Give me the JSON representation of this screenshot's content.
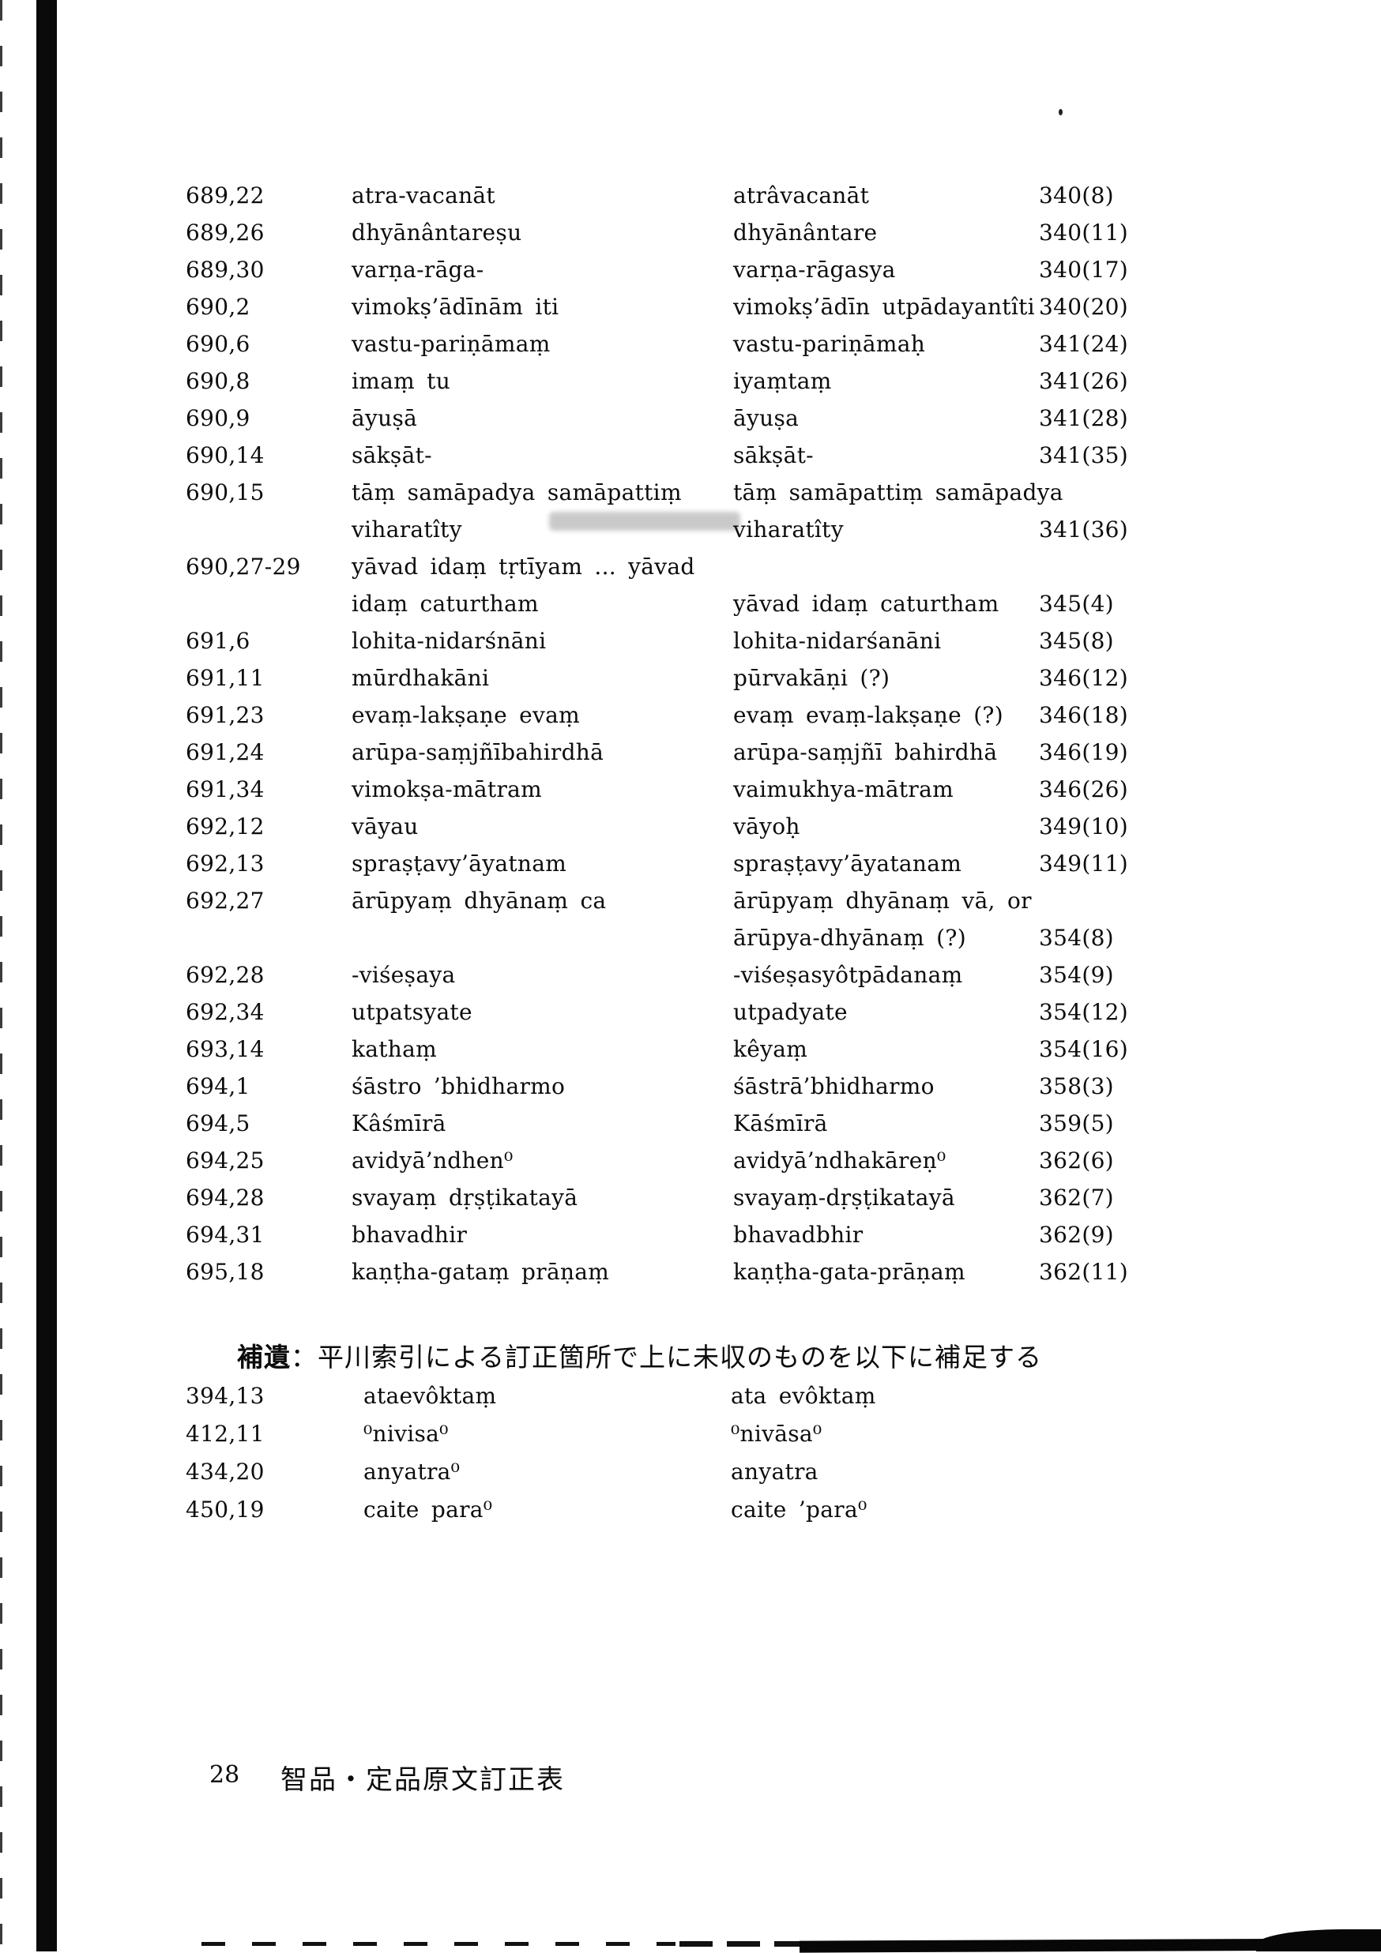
{
  "colors": {
    "ink": "#0c0c0c",
    "paper": "#ffffff"
  },
  "table": {
    "rows": [
      {
        "ref": "689,22",
        "original": [
          "atra-vacanāt"
        ],
        "corrected": [
          "atrâvacanāt"
        ],
        "loc": [
          "340(8)"
        ]
      },
      {
        "ref": "689,26",
        "original": [
          "dhyānântareṣu"
        ],
        "corrected": [
          "dhyānântare"
        ],
        "loc": [
          "340(11)"
        ]
      },
      {
        "ref": "689,30",
        "original": [
          "varṇa-rāga-"
        ],
        "corrected": [
          "varṇa-rāgasya"
        ],
        "loc": [
          "340(17)"
        ]
      },
      {
        "ref": "690,2",
        "original": [
          "vimokṣ’ādīnām iti"
        ],
        "corrected": [
          "vimokṣ’ādīn utpādayantîti"
        ],
        "loc": [
          "340(20)"
        ]
      },
      {
        "ref": "690,6",
        "original": [
          "vastu-pariṇāmaṃ"
        ],
        "corrected": [
          "vastu-pariṇāmaḥ"
        ],
        "loc": [
          "341(24)"
        ]
      },
      {
        "ref": "690,8",
        "original": [
          "imaṃ tu"
        ],
        "corrected": [
          "iyaṃtaṃ"
        ],
        "loc": [
          "341(26)"
        ]
      },
      {
        "ref": "690,9",
        "original": [
          "āyuṣā"
        ],
        "corrected": [
          "āyuṣa"
        ],
        "loc": [
          "341(28)"
        ]
      },
      {
        "ref": "690,14",
        "original": [
          "sākṣāt-"
        ],
        "corrected": [
          "sākṣāt-"
        ],
        "loc": [
          "341(35)"
        ]
      },
      {
        "ref": "690,15",
        "original": [
          "tāṃ samāpadya samāpattiṃ",
          "viharatîty"
        ],
        "corrected": [
          "tāṃ samāpattiṃ samāpadya",
          "viharatîty"
        ],
        "loc": [
          "",
          "341(36)"
        ]
      },
      {
        "ref": "690,27-29",
        "original": [
          "yāvad idaṃ tṛtīyam ... yāvad",
          "idaṃ caturtham"
        ],
        "corrected": [
          "",
          "yāvad idaṃ caturtham"
        ],
        "loc": [
          "",
          "345(4)"
        ]
      },
      {
        "ref": "691,6",
        "original": [
          "lohita-nidarśnāni"
        ],
        "corrected": [
          "lohita-nidarśanāni"
        ],
        "loc": [
          "345(8)"
        ]
      },
      {
        "ref": "691,11",
        "original": [
          "mūrdhakāni"
        ],
        "corrected": [
          "pūrvakāṇi (?)"
        ],
        "loc": [
          "346(12)"
        ]
      },
      {
        "ref": "691,23",
        "original": [
          "evaṃ-lakṣaṇe evaṃ"
        ],
        "corrected": [
          "evaṃ evaṃ-lakṣaṇe (?)"
        ],
        "loc": [
          "346(18)"
        ]
      },
      {
        "ref": "691,24",
        "original": [
          "arūpa-saṃjñībahirdhā"
        ],
        "corrected": [
          "arūpa-saṃjñī bahirdhā"
        ],
        "loc": [
          "346(19)"
        ]
      },
      {
        "ref": "691,34",
        "original": [
          "vimokṣa-mātram"
        ],
        "corrected": [
          "vaimukhya-mātram"
        ],
        "loc": [
          "346(26)"
        ]
      },
      {
        "ref": "692,12",
        "original": [
          "vāyau"
        ],
        "corrected": [
          "vāyoḥ"
        ],
        "loc": [
          "349(10)"
        ]
      },
      {
        "ref": "692,13",
        "original": [
          "spraṣṭavy’āyatnam"
        ],
        "corrected": [
          "spraṣṭavy’āyatanam"
        ],
        "loc": [
          "349(11)"
        ]
      },
      {
        "ref": "692,27",
        "original": [
          "ārūpyaṃ dhyānaṃ ca",
          ""
        ],
        "corrected": [
          "ārūpyaṃ dhyānaṃ vā, or",
          "ārūpya-dhyānaṃ (?)"
        ],
        "loc": [
          "",
          "354(8)"
        ]
      },
      {
        "ref": "692,28",
        "original": [
          "-viśeṣaya"
        ],
        "corrected": [
          "-viśeṣasyôtpādanaṃ"
        ],
        "loc": [
          "354(9)"
        ]
      },
      {
        "ref": "692,34",
        "original": [
          "utpatsyate"
        ],
        "corrected": [
          "utpadyate"
        ],
        "loc": [
          "354(12)"
        ]
      },
      {
        "ref": "693,14",
        "original": [
          "kathaṃ"
        ],
        "corrected": [
          "kêyaṃ"
        ],
        "loc": [
          "354(16)"
        ]
      },
      {
        "ref": "694,1",
        "original": [
          "śāstro ’bhidharmo"
        ],
        "corrected": [
          "śāstrā’bhidharmo"
        ],
        "loc": [
          "358(3)"
        ]
      },
      {
        "ref": "694,5",
        "original": [
          "Kâśmīrā"
        ],
        "corrected": [
          "Kāśmīrā"
        ],
        "loc": [
          "359(5)"
        ]
      },
      {
        "ref": "694,25",
        "original": [
          "avidyā’ndhen⁰"
        ],
        "corrected": [
          "avidyā’ndhakāreṇ⁰"
        ],
        "loc": [
          "362(6)"
        ]
      },
      {
        "ref": "694,28",
        "original": [
          "svayaṃ dṛṣṭikatayā"
        ],
        "corrected": [
          "svayaṃ-dṛṣṭikatayā"
        ],
        "loc": [
          "362(7)"
        ]
      },
      {
        "ref": "694,31",
        "original": [
          "bhavadhir"
        ],
        "corrected": [
          "bhavadbhir"
        ],
        "loc": [
          "362(9)"
        ]
      },
      {
        "ref": "695,18",
        "original": [
          "kaṇṭha-gataṃ prāṇaṃ"
        ],
        "corrected": [
          "kaṇṭha-gata-prāṇaṃ"
        ],
        "loc": [
          "362(11)"
        ]
      }
    ]
  },
  "supplement": {
    "heading_label": "補遺",
    "heading_text": "：平川索引による訂正箇所で上に未収のものを以下に補足する",
    "rows": [
      {
        "ref": "394,13",
        "original": [
          "ataevôktaṃ"
        ],
        "corrected": [
          "ata evôktaṃ"
        ],
        "loc": []
      },
      {
        "ref": "412,11",
        "original": [
          "⁰nivisa⁰"
        ],
        "corrected": [
          "⁰nivāsa⁰"
        ],
        "loc": []
      },
      {
        "ref": "434,20",
        "original": [
          "anyatra⁰"
        ],
        "corrected": [
          "anyatra"
        ],
        "loc": []
      },
      {
        "ref": "450,19",
        "original": [
          "caite para⁰"
        ],
        "corrected": [
          "caite ’para⁰"
        ],
        "loc": []
      }
    ]
  },
  "footer": {
    "page_number": "28",
    "title": "智品・定品原文訂正表"
  }
}
